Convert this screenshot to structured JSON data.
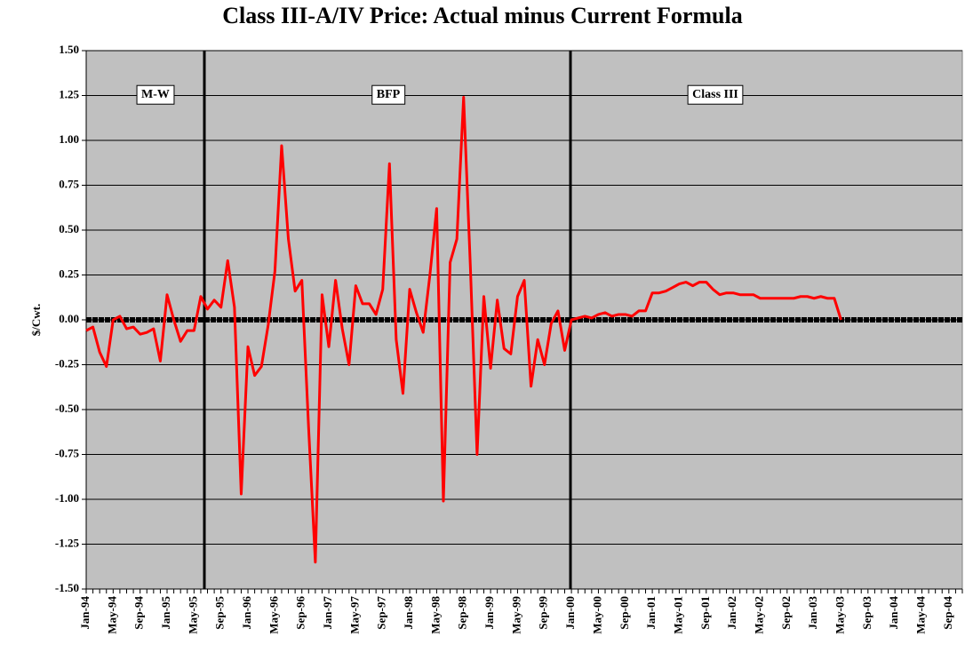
{
  "chart_data": {
    "type": "line",
    "title": "Class III-A/IV Price: Actual minus Current Formula",
    "y_label": "$/Cwt.",
    "annotations": [
      "M-W",
      "BFP",
      "Class III"
    ],
    "color": "#ff0000",
    "grid": true,
    "categories": [
      "Jan-94",
      null,
      null,
      null,
      "May-94",
      null,
      null,
      null,
      "Sep-94",
      null,
      null,
      null,
      "Jan-95",
      null,
      null,
      null,
      "May-95",
      null,
      null,
      null,
      "Sep-95",
      null,
      null,
      null,
      "Jan-96",
      null,
      null,
      null,
      "May-96",
      null,
      null,
      null,
      "Sep-96",
      null,
      null,
      null,
      "Jan-97",
      null,
      null,
      null,
      "May-97",
      null,
      null,
      null,
      "Sep-97",
      null,
      null,
      null,
      "Jan-98",
      null,
      null,
      null,
      "May-98",
      null,
      null,
      null,
      "Sep-98",
      null,
      null,
      null,
      "Jan-99",
      null,
      null,
      null,
      "May-99",
      null,
      null,
      null,
      "Sep-99",
      null,
      null,
      null,
      "Jan-00",
      null,
      null,
      null,
      "May-00",
      null,
      null,
      null,
      "Sep-00",
      null,
      null,
      null,
      "Jan-01",
      null,
      null,
      null,
      "May-01",
      null,
      null,
      null,
      "Sep-01",
      null,
      null,
      null,
      "Jan-02",
      null,
      null,
      null,
      "May-02",
      null,
      null,
      null,
      "Sep-02",
      null,
      null,
      null,
      "Jan-03",
      null,
      null,
      null,
      "May-03",
      null,
      null,
      null,
      "Sep-03",
      null,
      null,
      null,
      "Jan-04",
      null,
      null,
      null,
      "May-04",
      null,
      null,
      null,
      "Sep-04",
      null,
      null
    ],
    "values": [
      -0.06,
      -0.04,
      -0.18,
      -0.26,
      0.0,
      0.02,
      -0.05,
      -0.04,
      -0.08,
      -0.07,
      -0.05,
      -0.23,
      0.14,
      0.0,
      -0.12,
      -0.06,
      -0.06,
      0.13,
      0.06,
      0.11,
      0.07,
      0.33,
      0.07,
      -0.97,
      -0.15,
      -0.31,
      -0.26,
      -0.03,
      0.27,
      0.97,
      0.45,
      0.16,
      0.22,
      -0.6,
      -1.35,
      0.14,
      -0.15,
      0.22,
      -0.05,
      -0.25,
      0.19,
      0.09,
      0.09,
      0.03,
      0.17,
      0.87,
      -0.11,
      -0.41,
      0.17,
      0.04,
      -0.07,
      0.25,
      0.62,
      -1.01,
      0.32,
      0.45,
      1.24,
      0.3,
      -0.75,
      0.13,
      -0.27,
      0.11,
      -0.16,
      -0.19,
      0.13,
      0.22,
      -0.37,
      -0.11,
      -0.25,
      -0.02,
      0.05,
      -0.17,
      0.0,
      0.01,
      0.02,
      0.01,
      0.03,
      0.04,
      0.02,
      0.03,
      0.03,
      0.02,
      0.05,
      0.05,
      0.15,
      0.15,
      0.16,
      0.18,
      0.2,
      0.21,
      0.19,
      0.21,
      0.21,
      0.17,
      0.14,
      0.15,
      0.15,
      0.14,
      0.14,
      0.14,
      0.12,
      0.12,
      0.12,
      0.12,
      0.12,
      0.12,
      0.13,
      0.13,
      0.12,
      0.13,
      0.12,
      0.12,
      0.0,
      null,
      null,
      null,
      null,
      null,
      null,
      null,
      null,
      null,
      null,
      null,
      null,
      null,
      null,
      null,
      null,
      null,
      null
    ],
    "ylim": [
      -1.5,
      1.5
    ],
    "yticks": [
      {
        "value": -1.5,
        "label": "-1.50"
      },
      {
        "value": -1.25,
        "label": "-1.25"
      },
      {
        "value": -1,
        "label": "-1.00"
      },
      {
        "value": -0.75,
        "label": "-0.75"
      },
      {
        "value": -0.5,
        "label": "-0.50"
      },
      {
        "value": -0.25,
        "label": "-0.25"
      },
      {
        "value": 0,
        "label": "0.00"
      },
      {
        "value": 0.25,
        "label": "0.25"
      },
      {
        "value": 0.5,
        "label": "0.50"
      },
      {
        "value": 0.75,
        "label": "0.75"
      },
      {
        "value": 1,
        "label": "1.00"
      },
      {
        "value": 1.25,
        "label": "1.25"
      },
      {
        "value": 1.5,
        "label": "1.50"
      }
    ]
  }
}
